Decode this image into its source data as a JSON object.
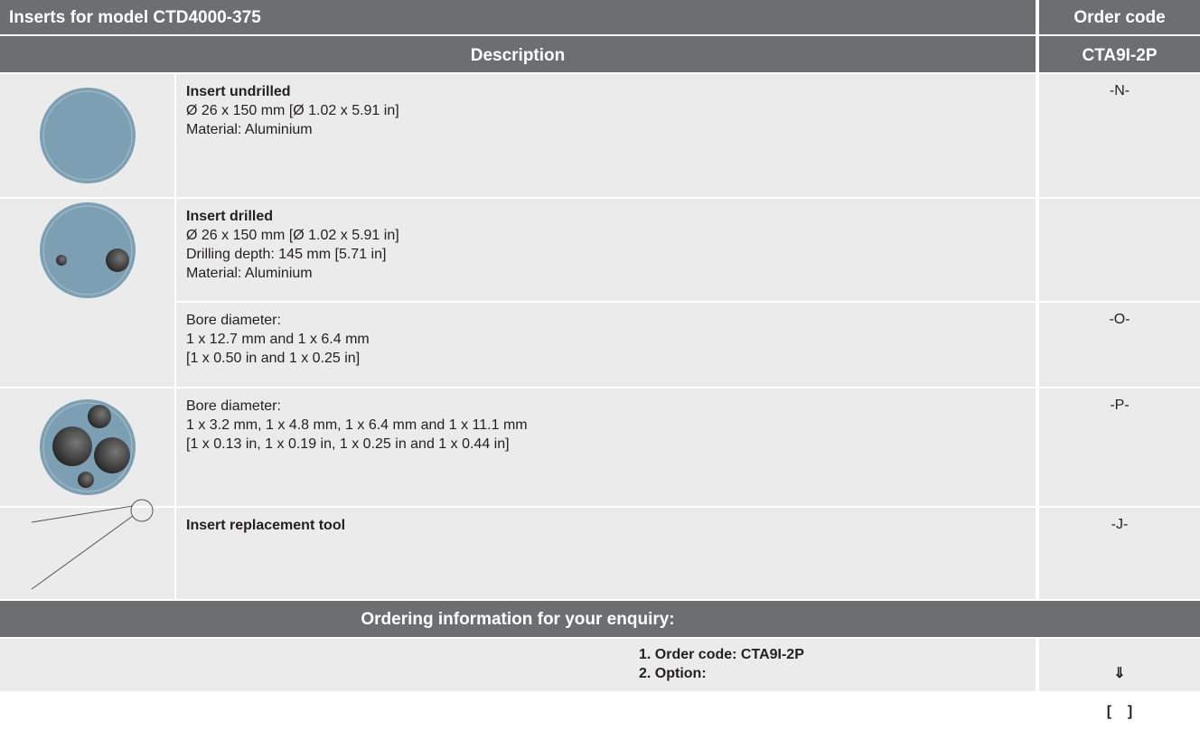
{
  "header": {
    "title": "Inserts for model CTD4000-375",
    "order_code": "Order code"
  },
  "subheader": {
    "description": "Description",
    "code": "CTA9I-2P"
  },
  "items": [
    {
      "title": "Insert undrilled",
      "lines": [
        "Ø 26 x 150 mm [Ø 1.02 x 5.91 in]",
        "Material: Aluminium"
      ],
      "code": "-N-"
    },
    {
      "title": "Insert drilled",
      "lines": [
        "Ø 26 x 150 mm [Ø 1.02 x 5.91 in]",
        "Drilling depth: 145 mm [5.71 in]",
        "Material: Aluminium"
      ]
    },
    {
      "lines": [
        "Bore diameter:",
        "1 x 12.7 mm and 1 x 6.4 mm",
        "[1 x 0.50 in and 1 x 0.25 in]"
      ],
      "code": "-O-"
    },
    {
      "lines": [
        "Bore diameter:",
        "1 x 3.2 mm, 1 x 4.8 mm, 1 x 6.4 mm and 1 x 11.1 mm",
        "[1 x 0.13 in, 1 x 0.19 in, 1 x 0.25 in and 1 x 0.44 in]"
      ],
      "code": "-P-"
    },
    {
      "title": "Insert replacement tool",
      "code": "-J-"
    }
  ],
  "ordering": {
    "title": "Ordering information for your enquiry:",
    "lines": [
      "1. Order code: CTA9I-2P",
      "2. Option:"
    ],
    "marks": [
      "⇓",
      "[    ]"
    ]
  }
}
